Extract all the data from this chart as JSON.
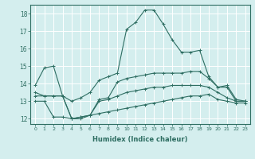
{
  "xlabel": "Humidex (Indice chaleur)",
  "bg_color": "#d4eeee",
  "grid_color": "#ffffff",
  "line_color": "#2e6e62",
  "xlim": [
    -0.5,
    23.5
  ],
  "ylim": [
    11.7,
    18.5
  ],
  "yticks": [
    12,
    13,
    14,
    15,
    16,
    17,
    18
  ],
  "xticks": [
    0,
    1,
    2,
    3,
    4,
    5,
    6,
    7,
    8,
    9,
    10,
    11,
    12,
    13,
    14,
    15,
    16,
    17,
    18,
    19,
    20,
    21,
    22,
    23
  ],
  "series": [
    {
      "x": [
        0,
        1,
        2,
        3,
        4,
        5,
        6,
        7,
        8,
        9,
        10,
        11,
        12,
        13,
        14,
        15,
        16,
        17,
        18,
        19,
        20,
        21,
        22,
        23
      ],
      "y": [
        13.9,
        14.9,
        15.0,
        13.3,
        13.0,
        13.2,
        13.5,
        14.2,
        14.4,
        14.6,
        17.1,
        17.5,
        18.2,
        18.2,
        17.4,
        16.5,
        15.8,
        15.8,
        15.9,
        14.4,
        13.8,
        13.9,
        13.1,
        13.0
      ]
    },
    {
      "x": [
        0,
        1,
        2,
        3,
        4,
        5,
        6,
        7,
        8,
        9,
        10,
        11,
        12,
        13,
        14,
        15,
        16,
        17,
        18,
        19,
        20,
        21,
        22,
        23
      ],
      "y": [
        13.5,
        13.3,
        13.3,
        13.3,
        12.0,
        12.1,
        12.2,
        13.1,
        13.2,
        14.1,
        14.3,
        14.4,
        14.5,
        14.6,
        14.6,
        14.6,
        14.6,
        14.7,
        14.7,
        14.3,
        13.8,
        13.8,
        13.0,
        13.0
      ]
    },
    {
      "x": [
        0,
        1,
        2,
        3,
        4,
        5,
        6,
        7,
        8,
        9,
        10,
        11,
        12,
        13,
        14,
        15,
        16,
        17,
        18,
        19,
        20,
        21,
        22,
        23
      ],
      "y": [
        13.3,
        13.3,
        13.3,
        13.3,
        12.0,
        12.0,
        12.2,
        13.0,
        13.1,
        13.3,
        13.5,
        13.6,
        13.7,
        13.8,
        13.8,
        13.9,
        13.9,
        13.9,
        13.9,
        13.8,
        13.5,
        13.2,
        13.0,
        13.0
      ]
    },
    {
      "x": [
        0,
        1,
        2,
        3,
        4,
        5,
        6,
        7,
        8,
        9,
        10,
        11,
        12,
        13,
        14,
        15,
        16,
        17,
        18,
        19,
        20,
        21,
        22,
        23
      ],
      "y": [
        13.0,
        13.0,
        12.1,
        12.1,
        12.0,
        12.1,
        12.2,
        12.3,
        12.4,
        12.5,
        12.6,
        12.7,
        12.8,
        12.9,
        13.0,
        13.1,
        13.2,
        13.3,
        13.3,
        13.4,
        13.1,
        13.0,
        12.9,
        12.9
      ]
    }
  ]
}
